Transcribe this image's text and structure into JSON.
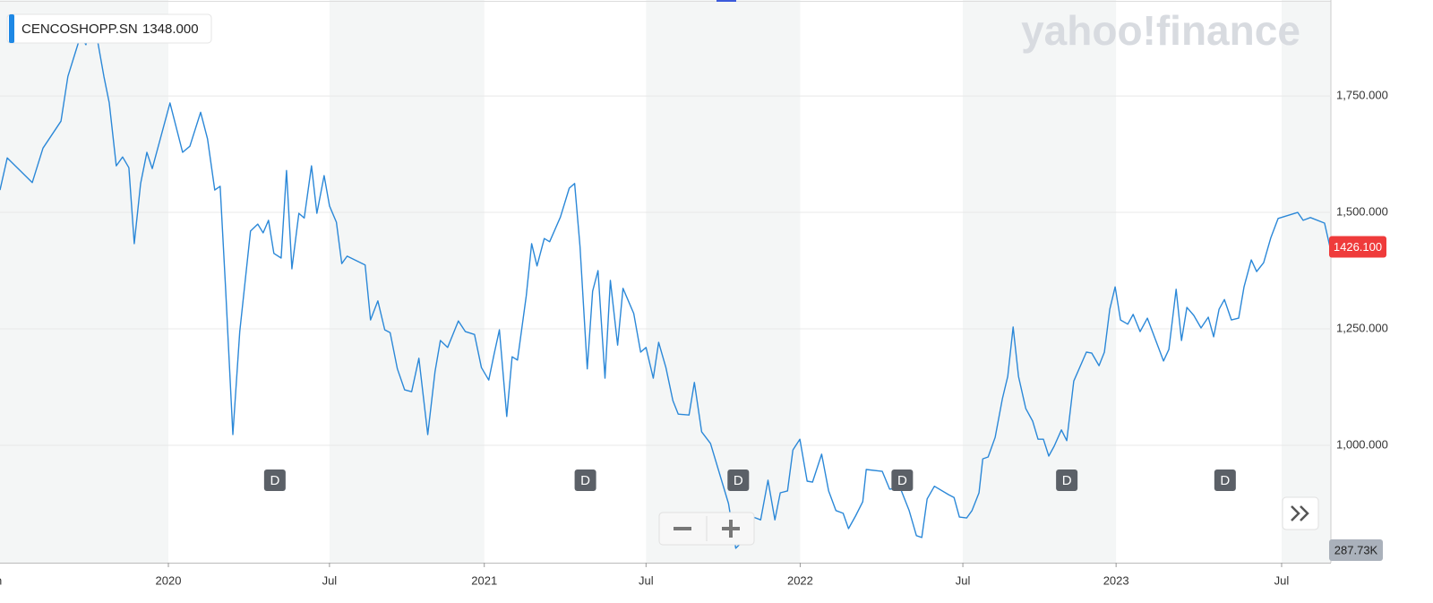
{
  "chart_data": {
    "type": "line",
    "brand": "yahoo!finance",
    "legend_price": "1348.000",
    "series": [
      {
        "name": "CENCOSHOPP.SN",
        "color": "#2b88d8",
        "x": [
          2019.467,
          2019.49,
          2019.569,
          2019.603,
          2019.66,
          2019.682,
          2019.722,
          2019.739,
          2019.762,
          2019.796,
          2019.813,
          2019.835,
          2019.855,
          2019.875,
          2019.892,
          2019.912,
          2019.932,
          2019.949,
          2020.005,
          2020.045,
          2020.068,
          2020.102,
          2020.124,
          2020.147,
          2020.164,
          2020.181,
          2020.204,
          2020.226,
          2020.26,
          2020.283,
          2020.3,
          2020.317,
          2020.334,
          2020.357,
          2020.374,
          2020.391,
          2020.413,
          2020.43,
          2020.453,
          2020.47,
          2020.493,
          2020.51,
          2020.532,
          2020.549,
          2020.566,
          2020.623,
          2020.64,
          2020.663,
          2020.685,
          2020.702,
          2020.725,
          2020.748,
          2020.77,
          2020.793,
          2020.821,
          2020.844,
          2020.861,
          2020.884,
          2020.918,
          2020.94,
          2020.969,
          2020.991,
          2021.014,
          2021.031,
          2021.048,
          2021.071,
          2021.088,
          2021.105,
          2021.133,
          2021.15,
          2021.167,
          2021.19,
          2021.207,
          2021.241,
          2021.269,
          2021.286,
          2021.303,
          2021.326,
          2021.343,
          2021.36,
          2021.382,
          2021.399,
          2021.422,
          2021.439,
          2021.473,
          2021.495,
          2021.512,
          2021.535,
          2021.552,
          2021.575,
          2021.597,
          2021.614,
          2021.648,
          2021.665,
          2021.688,
          2021.716,
          2021.773,
          2021.796,
          2021.83,
          2021.852,
          2021.875,
          2021.898,
          2021.92,
          2021.937,
          2021.96,
          2021.977,
          2021.999,
          2022.022,
          2022.039,
          2022.068,
          2022.09,
          2022.113,
          2022.136,
          2022.153,
          2022.175,
          2022.198,
          2022.209,
          2022.26,
          2022.283,
          2022.317,
          2022.345,
          2022.368,
          2022.385,
          2022.402,
          2022.425,
          2022.47,
          2022.487,
          2022.504,
          2022.527,
          2022.544,
          2022.566,
          2022.578,
          2022.595,
          2022.617,
          2022.64,
          2022.657,
          2022.674,
          2022.691,
          2022.714,
          2022.736,
          2022.753,
          2022.77,
          2022.787,
          2022.804,
          2022.827,
          2022.844,
          2022.866,
          2022.906,
          2022.923,
          2022.946,
          2022.963,
          2022.98,
          2022.997,
          2023.014,
          2023.037,
          2023.054,
          2023.076,
          2023.099,
          2023.15,
          2023.167,
          2023.19,
          2023.207,
          2023.224,
          2023.246,
          2023.269,
          2023.292,
          2023.309,
          2023.326,
          2023.343,
          2023.365,
          2023.388,
          2023.405,
          2023.428,
          2023.445,
          2023.467,
          2023.49,
          2023.513,
          2023.575,
          2023.592,
          2023.615,
          2023.66,
          2023.677
        ],
        "values": [
          1548,
          1617,
          1564,
          1638,
          1696,
          1792,
          1879,
          1860,
          1921,
          1792,
          1735,
          1600,
          1619,
          1596,
          1433,
          1562,
          1629,
          1594,
          1735,
          1629,
          1642,
          1715,
          1658,
          1548,
          1556,
          1340,
          1023,
          1244,
          1460,
          1475,
          1456,
          1483,
          1412,
          1402,
          1590,
          1379,
          1498,
          1488,
          1600,
          1498,
          1579,
          1514,
          1479,
          1390,
          1406,
          1387,
          1269,
          1310,
          1248,
          1242,
          1164,
          1119,
          1115,
          1187,
          1023,
          1158,
          1225,
          1210,
          1267,
          1244,
          1238,
          1167,
          1140,
          1196,
          1248,
          1062,
          1190,
          1183,
          1321,
          1433,
          1385,
          1444,
          1437,
          1490,
          1552,
          1562,
          1427,
          1164,
          1331,
          1375,
          1144,
          1354,
          1215,
          1337,
          1283,
          1200,
          1210,
          1144,
          1221,
          1167,
          1096,
          1067,
          1065,
          1135,
          1029,
          1004,
          875,
          779,
          802,
          846,
          840,
          925,
          840,
          898,
          902,
          990,
          1013,
          923,
          921,
          981,
          902,
          860,
          854,
          821,
          848,
          879,
          948,
          944,
          906,
          908,
          860,
          806,
          802,
          885,
          912,
          894,
          888,
          846,
          844,
          860,
          898,
          971,
          975,
          1017,
          1100,
          1148,
          1254,
          1148,
          1079,
          1052,
          1013,
          1013,
          977,
          998,
          1033,
          1010,
          1138,
          1200,
          1198,
          1171,
          1200,
          1292,
          1340,
          1269,
          1260,
          1281,
          1244,
          1273,
          1181,
          1206,
          1335,
          1225,
          1296,
          1279,
          1252,
          1275,
          1233,
          1292,
          1313,
          1269,
          1273,
          1340,
          1398,
          1373,
          1392,
          1446,
          1487,
          1500,
          1483,
          1489,
          1477,
          1426.1
        ]
      }
    ],
    "last_price": {
      "value": 1426.1,
      "label": "1426.100"
    },
    "volume_label": "287.73K",
    "events": {
      "x": [
        2020.337,
        2021.32,
        2021.804,
        2022.323,
        2022.844,
        2023.345
      ],
      "labels": [
        "D",
        "D",
        "D",
        "D",
        "D",
        "D"
      ]
    },
    "xlim": [
      2019.467,
      2023.68
    ],
    "xticks": [
      {
        "value": 2019.453,
        "label": "un"
      },
      2020,
      {
        "value": 2020.51,
        "label": "Jul"
      },
      2021,
      {
        "value": 2021.512,
        "label": "Jul"
      },
      2022,
      {
        "value": 2022.515,
        "label": "Jul"
      },
      2023,
      {
        "value": 2023.524,
        "label": "Jul"
      }
    ],
    "ylim": [
      748,
      1956
    ],
    "yticks": [
      {
        "value": 1000,
        "label": "1,000.000"
      },
      {
        "value": 1250,
        "label": "1,250.000"
      },
      {
        "value": 1500,
        "label": "1,500.000"
      },
      {
        "value": 1750,
        "label": "1,750.000"
      }
    ],
    "grid": true
  }
}
